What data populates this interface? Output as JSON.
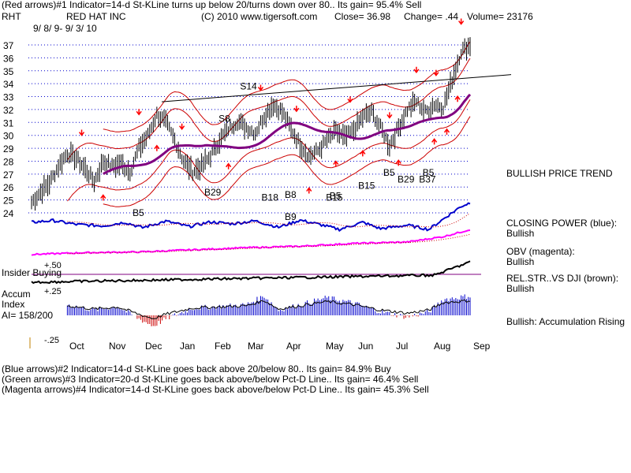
{
  "header": {
    "line1": "(Red arrows)#1 Indicator=14-d St-KLine turns up below 20/turns down over 80..  Its gain= 95.4% Sell",
    "ticker": "RHT",
    "company": "RED HAT INC",
    "copyright": "(C) 2010 www.tigersoft.com",
    "close": "Close=  36.98",
    "change": "Change= .44",
    "volume": "Volume= 23176",
    "date_range": "9/ 8/ 9-  9/ 3/ 10"
  },
  "right_labels": {
    "trend": "BULLISH PRICE TREND",
    "cp_title": "CLOSING POWER (blue):",
    "cp_value": "Bullish",
    "obv_title": "OBV (magenta):",
    "obv_value": "Bullish",
    "rs_title": "REL.STR..VS DJI (brown):",
    "rs_value": "Bullish",
    "accum": "Bullish: Accumulation Rising"
  },
  "left_labels": {
    "insider": "Insider Buying",
    "plus50": "+.50",
    "accum1": "Accum",
    "plus25": "+.25",
    "accum2": "Index",
    "ai": "AI= 158/200",
    "minus25": "-.25"
  },
  "footer": {
    "line2": "(Blue arrows)#2 Indicator=14-d St-KLine goes back above 20/below 80..  Its gain= 84.9% Buy",
    "line3": "(Green arrows)#3 Indicator=20-d St-KLine goes back above/below Pct-D Line..  Its gain= 46.4% Sell",
    "line4": "(Magenta arrows)#4 Indicator=14-d St-KLine goes back above/below Pct-D Line..  Its gain= 45.3% Sell"
  },
  "colors": {
    "price": "#000000",
    "bands": "#cc0000",
    "ma": "#800080",
    "closing_power": "#0000cc",
    "obv": "#ff00ff",
    "rel_str": "#800000",
    "accum_pos": "#0000cc",
    "accum_neg": "#cc0000",
    "grid": "#0000cc",
    "sell_arrow": "#ff0000",
    "buy_arrow": "#0000ff"
  },
  "chart_data": {
    "type": "line",
    "title": "RED HAT INC",
    "ylim": [
      24,
      37
    ],
    "y_ticks": [
      24,
      25,
      26,
      27,
      28,
      29,
      30,
      31,
      32,
      33,
      34,
      35,
      36,
      37
    ],
    "x_ticks": [
      "Oct",
      "Nov",
      "Dec",
      "Jan",
      "Feb",
      "Mar",
      "Apr",
      "May",
      "Jun",
      "Jul",
      "Aug",
      "Sep"
    ],
    "price_anchors": [
      [
        0,
        24.8
      ],
      [
        5,
        25.6
      ],
      [
        10,
        26.3
      ],
      [
        15,
        27.6
      ],
      [
        20,
        28.6
      ],
      [
        25,
        28.2
      ],
      [
        30,
        27.4
      ],
      [
        35,
        26.4
      ],
      [
        40,
        28.0
      ],
      [
        45,
        27.6
      ],
      [
        50,
        27.8
      ],
      [
        55,
        27.2
      ],
      [
        60,
        29.0
      ],
      [
        65,
        30.0
      ],
      [
        70,
        31.6
      ],
      [
        75,
        31.0
      ],
      [
        80,
        29.6
      ],
      [
        85,
        28.0
      ],
      [
        90,
        27.2
      ],
      [
        95,
        27.6
      ],
      [
        100,
        28.4
      ],
      [
        105,
        29.6
      ],
      [
        110,
        30.5
      ],
      [
        115,
        31.1
      ],
      [
        120,
        30.6
      ],
      [
        125,
        30.2
      ],
      [
        130,
        31.5
      ],
      [
        135,
        32.4
      ],
      [
        140,
        31.8
      ],
      [
        145,
        30.5
      ],
      [
        150,
        29.3
      ],
      [
        155,
        28.4
      ],
      [
        160,
        28.8
      ],
      [
        165,
        29.6
      ],
      [
        170,
        30.3
      ],
      [
        175,
        29.8
      ],
      [
        180,
        30.4
      ],
      [
        185,
        31.4
      ],
      [
        190,
        31.8
      ],
      [
        195,
        30.6
      ],
      [
        200,
        29.2
      ],
      [
        205,
        30.6
      ],
      [
        210,
        32.0
      ],
      [
        215,
        32.6
      ],
      [
        220,
        31.8
      ],
      [
        225,
        32.4
      ],
      [
        230,
        32.2
      ],
      [
        235,
        34.3
      ],
      [
        240,
        36.5
      ],
      [
        245,
        37.0
      ]
    ],
    "closing_power_anchors": [
      [
        0,
        40
      ],
      [
        12,
        45
      ],
      [
        25,
        34
      ],
      [
        40,
        30
      ],
      [
        52,
        40
      ],
      [
        62,
        25
      ],
      [
        75,
        43
      ],
      [
        88,
        28
      ],
      [
        100,
        41
      ],
      [
        112,
        36
      ],
      [
        125,
        44
      ],
      [
        138,
        26
      ],
      [
        150,
        46
      ],
      [
        160,
        35
      ],
      [
        172,
        20
      ],
      [
        185,
        40
      ],
      [
        195,
        22
      ],
      [
        210,
        32
      ],
      [
        222,
        20
      ],
      [
        233,
        60
      ],
      [
        240,
        85
      ],
      [
        245,
        95
      ]
    ],
    "obv_anchors": [
      [
        0,
        5
      ],
      [
        30,
        10
      ],
      [
        60,
        12
      ],
      [
        90,
        18
      ],
      [
        120,
        24
      ],
      [
        150,
        28
      ],
      [
        180,
        36
      ],
      [
        210,
        40
      ],
      [
        230,
        55
      ],
      [
        245,
        75
      ]
    ],
    "accum_index_anchors": [
      [
        0,
        0.08
      ],
      [
        20,
        0.12
      ],
      [
        35,
        0.06
      ],
      [
        48,
        0.1
      ],
      [
        60,
        -0.04
      ],
      [
        68,
        -0.12
      ],
      [
        75,
        -0.04
      ],
      [
        90,
        0.08
      ],
      [
        105,
        0.1
      ],
      [
        120,
        0.12
      ],
      [
        130,
        0.22
      ],
      [
        138,
        0.06
      ],
      [
        150,
        0.12
      ],
      [
        165,
        0.2
      ],
      [
        180,
        0.14
      ],
      [
        195,
        0.04
      ],
      [
        210,
        -0.02
      ],
      [
        222,
        0.04
      ],
      [
        230,
        0.18
      ],
      [
        245,
        0.22
      ]
    ],
    "arrows": [
      {
        "label": "S14",
        "type": "sell"
      },
      {
        "label": "S8",
        "type": "sell"
      },
      {
        "label": "B29",
        "type": "buy"
      },
      {
        "label": "B5",
        "type": "buy"
      },
      {
        "label": "B18",
        "type": "buy"
      },
      {
        "label": "B8",
        "type": "buy"
      },
      {
        "label": "B9",
        "type": "buy"
      },
      {
        "label": "B15",
        "type": "buy"
      },
      {
        "label": "B5",
        "type": "buy"
      },
      {
        "label": "B15",
        "type": "buy"
      },
      {
        "label": "B5",
        "type": "buy"
      },
      {
        "label": "B29",
        "type": "buy"
      },
      {
        "label": "B37",
        "type": "buy"
      },
      {
        "label": "B5",
        "type": "buy"
      }
    ]
  }
}
